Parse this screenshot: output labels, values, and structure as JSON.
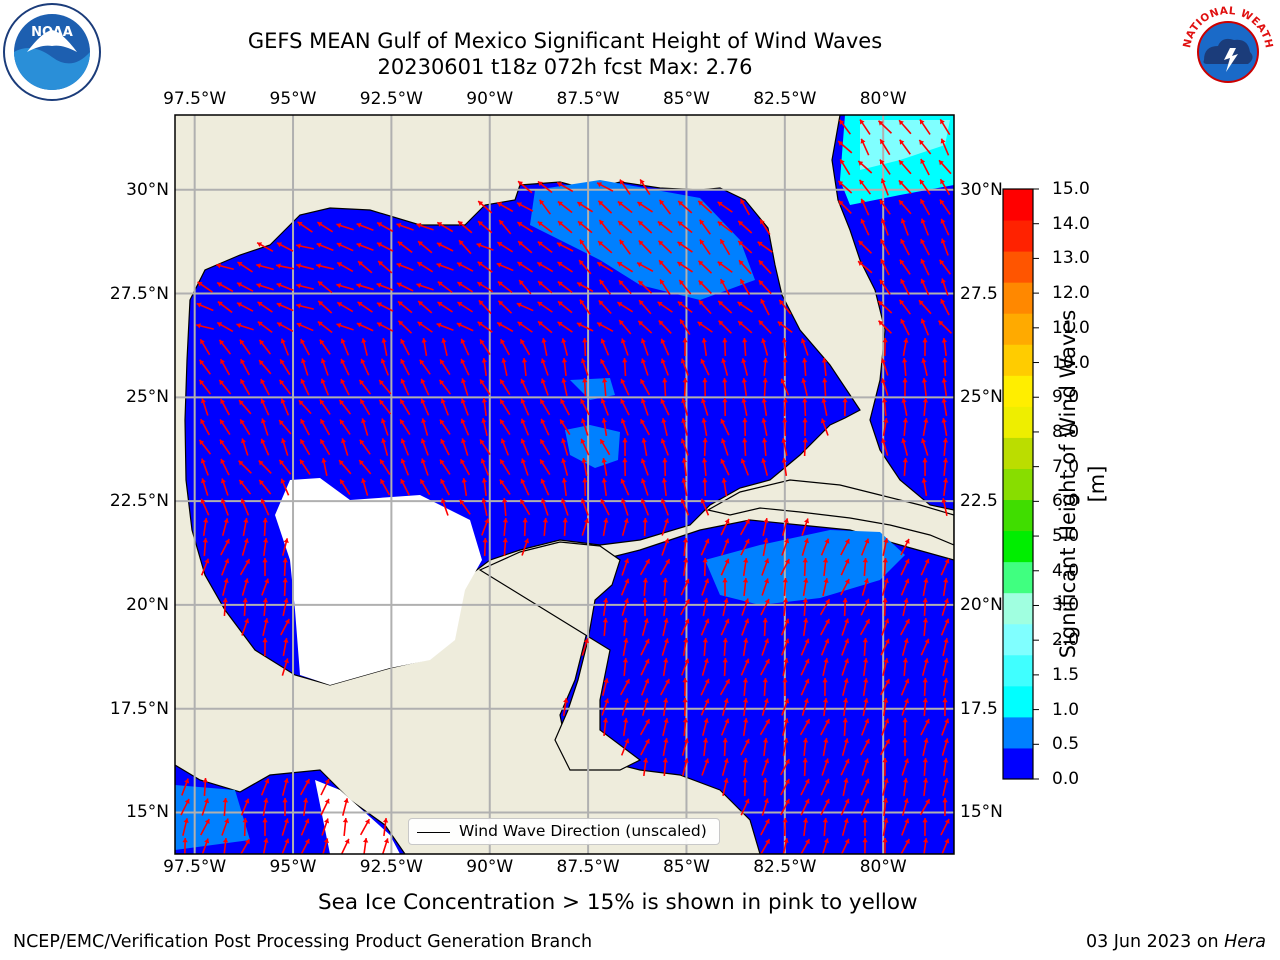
{
  "title": {
    "line1": "GEFS MEAN Gulf of Mexico Significant Height of Wind Waves",
    "line2": "20230601 t18z 072h fcst   Max: 2.76"
  },
  "map": {
    "lon_ticks": [
      {
        "value": -97.5,
        "label": "97.5°W"
      },
      {
        "value": -95,
        "label": "95°W"
      },
      {
        "value": -92.5,
        "label": "92.5°W"
      },
      {
        "value": -90,
        "label": "90°W"
      },
      {
        "value": -87.5,
        "label": "87.5°W"
      },
      {
        "value": -85,
        "label": "85°W"
      },
      {
        "value": -82.5,
        "label": "82.5°W"
      },
      {
        "value": -80,
        "label": "80°W"
      }
    ],
    "lat_ticks": [
      {
        "value": 30,
        "label": "30°N"
      },
      {
        "value": 27.5,
        "label": "27.5°N"
      },
      {
        "value": 25,
        "label": "25°N"
      },
      {
        "value": 22.5,
        "label": "22.5°N"
      },
      {
        "value": 20,
        "label": "20°N"
      },
      {
        "value": 17.5,
        "label": "17.5°N"
      },
      {
        "value": 15,
        "label": "15°N"
      }
    ],
    "right_lat_labels": [
      "30°N",
      "27.5",
      "25°N",
      "22.5",
      "20°N",
      "17.5",
      "15°N"
    ],
    "lon_range": [
      -98,
      -78.2
    ],
    "lat_range": [
      14,
      31.8
    ],
    "land_color": "#eeecdc",
    "ocean_color": "#0000ff",
    "arrow_color": "#ff0000",
    "legend_label": "Wind Wave Direction (unscaled)"
  },
  "colorbar": {
    "title": "Significant Height of Wind Waves [m]",
    "labels": [
      "15.0",
      "14.0",
      "13.0",
      "12.0",
      "11.0",
      "10.0",
      "9.0",
      "8.0",
      "7.0",
      "6.0",
      "5.0",
      "4.0",
      "3.0",
      "2.0",
      "1.5",
      "1.0",
      "0.5",
      "0.0"
    ],
    "colors": [
      "#0000ff",
      "#0080ff",
      "#00ffff",
      "#40ffff",
      "#80ffff",
      "#a0ffe0",
      "#40ff80",
      "#00ee00",
      "#40dd00",
      "#88dd00",
      "#bbdd00",
      "#eeee00",
      "#ffee00",
      "#ffcc00",
      "#ffaa00",
      "#ff8800",
      "#ff5500",
      "#ff2200",
      "#ff0000"
    ]
  },
  "caption": "Sea Ice Concentration > 15% is shown in pink to yellow",
  "footer": {
    "left": "NCEP/EMC/Verification Post Processing Product Generation Branch",
    "right_prefix": "03 Jun 2023 on ",
    "right_host": "Hera"
  },
  "logos": {
    "noaa_text": "NOAA",
    "nws_text": "NATIONAL WEATHER SERVICE"
  }
}
